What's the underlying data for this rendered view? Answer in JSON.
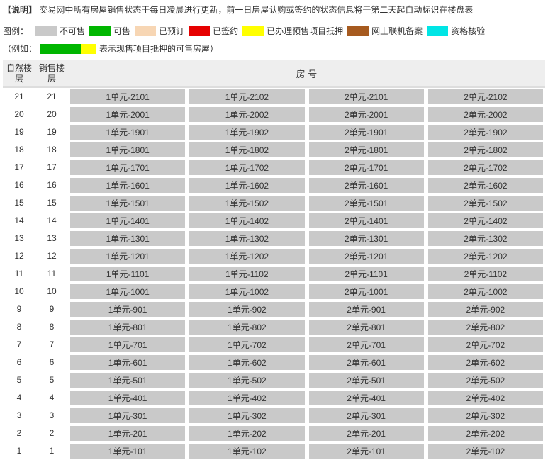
{
  "notice": {
    "title": "【说明】",
    "text": "交易网中所有房屋销售状态于每日凌晨进行更新，前一日房屋认购或签约的状态信息将于第二天起自动标识在楼盘表"
  },
  "legend": {
    "label": "图例：",
    "items": [
      {
        "name": "unsellable",
        "label": "不可售",
        "color": "#c9c9c9"
      },
      {
        "name": "sellable",
        "label": "可售",
        "color": "#00b600"
      },
      {
        "name": "reserved",
        "label": "已预订",
        "color": "#f7d6b4"
      },
      {
        "name": "signed",
        "label": "已签约",
        "color": "#e60000"
      },
      {
        "name": "mortgage",
        "label": "已办理预售项目抵押",
        "color": "#ffff00"
      },
      {
        "name": "filed",
        "label": "网上联机备案",
        "color": "#a65a1f"
      },
      {
        "name": "qualify",
        "label": "资格核验",
        "color": "#00e5e5"
      }
    ]
  },
  "example": {
    "prefix": "（例如：",
    "left_color": "#00b600",
    "right_color": "#ffff00",
    "suffix": "表示现售项目抵押的可售房屋）"
  },
  "table": {
    "headers": {
      "nat_floor": "自然楼层",
      "sale_floor": "销售楼层",
      "room_no": "房 号"
    },
    "unit_labels": [
      "1单元",
      "1单元",
      "2单元",
      "2单元"
    ],
    "unit_suffix": [
      "01",
      "02",
      "01",
      "02"
    ],
    "floors": [
      21,
      20,
      19,
      18,
      17,
      16,
      15,
      14,
      13,
      12,
      11,
      10,
      9,
      8,
      7,
      6,
      5,
      4,
      3,
      2,
      1
    ],
    "status_colors": {
      "unsellable": "#c9c9c9"
    },
    "default_status": "unsellable"
  }
}
